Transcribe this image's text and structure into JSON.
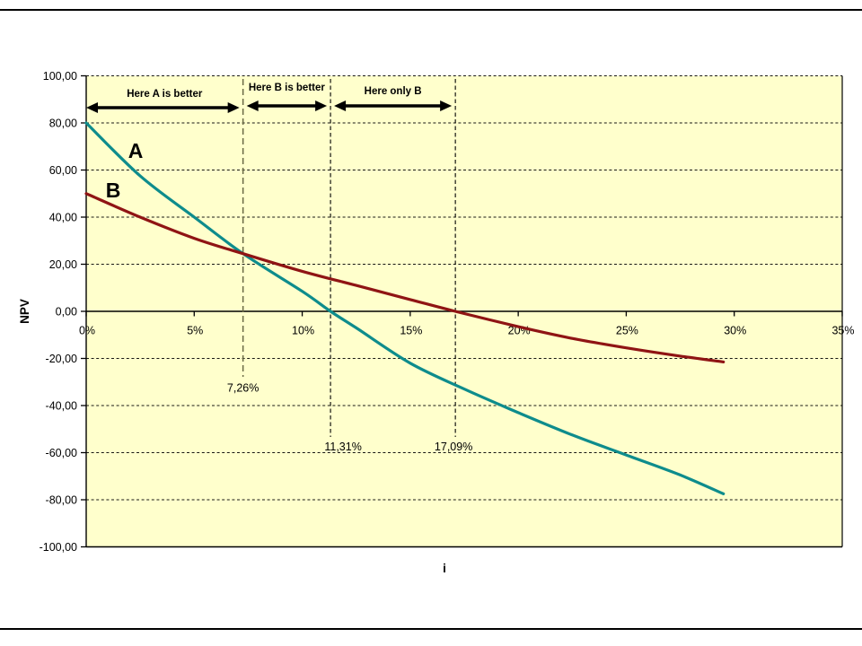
{
  "chart_data": {
    "type": "line",
    "title": "",
    "xlabel": "i",
    "ylabel": "NPV",
    "xlim_pct": [
      0,
      35
    ],
    "ylim": [
      -100,
      100
    ],
    "grid": "dashed horizontal and annotation verticals",
    "legend_position": "none (inline series letters)",
    "plot_bg": "#FFFFCC",
    "x_ticks": [
      {
        "value": 0,
        "label": "0%"
      },
      {
        "value": 5,
        "label": "5%"
      },
      {
        "value": 10,
        "label": "10%"
      },
      {
        "value": 15,
        "label": "15%"
      },
      {
        "value": 20,
        "label": "20%"
      },
      {
        "value": 25,
        "label": "25%"
      },
      {
        "value": 30,
        "label": "30%"
      },
      {
        "value": 35,
        "label": "35%"
      }
    ],
    "y_ticks": [
      {
        "value": 100,
        "label": "100,00"
      },
      {
        "value": 80,
        "label": "80,00"
      },
      {
        "value": 60,
        "label": "60,00"
      },
      {
        "value": 40,
        "label": "40,00"
      },
      {
        "value": 20,
        "label": "20,00"
      },
      {
        "value": 0,
        "label": "0,00"
      },
      {
        "value": -20,
        "label": "-20,00"
      },
      {
        "value": -40,
        "label": "-40,00"
      },
      {
        "value": -60,
        "label": "-60,00"
      },
      {
        "value": -80,
        "label": "-80,00"
      },
      {
        "value": -100,
        "label": "-100,00"
      }
    ],
    "series": [
      {
        "name": "A",
        "color": "#0E8C8C",
        "points": [
          [
            0,
            80
          ],
          [
            2.5,
            57.5
          ],
          [
            5,
            40
          ],
          [
            7.26,
            24.5
          ],
          [
            10,
            8.5
          ],
          [
            11.31,
            0
          ],
          [
            12.5,
            -7
          ],
          [
            15,
            -22
          ],
          [
            17.5,
            -33
          ],
          [
            20,
            -43
          ],
          [
            22.5,
            -52.5
          ],
          [
            25,
            -61
          ],
          [
            27.5,
            -69.5
          ],
          [
            29.5,
            -77.5
          ]
        ]
      },
      {
        "name": "B",
        "color": "#8F1414",
        "points": [
          [
            0,
            50
          ],
          [
            2.5,
            40
          ],
          [
            5,
            31
          ],
          [
            7.26,
            24.5
          ],
          [
            10,
            17
          ],
          [
            12.5,
            11
          ],
          [
            15,
            5
          ],
          [
            17.09,
            0
          ],
          [
            20,
            -6.5
          ],
          [
            22.5,
            -11.5
          ],
          [
            25,
            -15.5
          ],
          [
            27.5,
            -19
          ],
          [
            29.5,
            -21.5
          ]
        ]
      }
    ],
    "annotations": {
      "verticals": [
        {
          "pct": 7.26,
          "label": "7,26%",
          "style": "olive-dashed"
        },
        {
          "pct": 11.31,
          "label": "11,31%",
          "style": "black-dashed"
        },
        {
          "pct": 17.09,
          "label": "17,09%",
          "style": "black-dashed"
        }
      ],
      "regions": [
        {
          "label": "Here A is better",
          "from_pct": 0,
          "to_pct": 7.26
        },
        {
          "label": "Here B is better",
          "from_pct": 7.26,
          "to_pct": 11.31
        },
        {
          "label": "Here only B",
          "from_pct": 11.31,
          "to_pct": 17.09
        }
      ]
    },
    "colors": {
      "grid": "#000000",
      "frame": "#000000",
      "arrow": "#000000",
      "crossover_line": "#6A6A45"
    }
  }
}
